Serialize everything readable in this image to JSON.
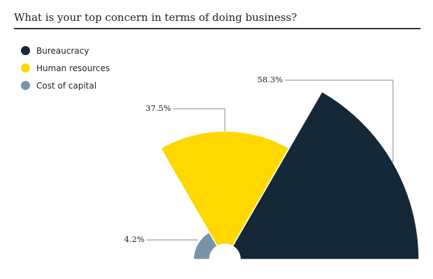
{
  "chart_data": {
    "type": "pie",
    "subtype": "polar-area-semicircle",
    "title": "What is your top concern in terms of doing business?",
    "series": [
      {
        "name": "Bureaucracy",
        "value": 58.3,
        "label": "58.3%",
        "color": "#152838"
      },
      {
        "name": "Human resources",
        "value": 37.5,
        "label": "37.5%",
        "color": "#FFD800"
      },
      {
        "name": "Cost of capital",
        "value": 4.2,
        "label": "4.2%",
        "color": "#7A93A6"
      }
    ],
    "legend_position": "top-left"
  }
}
